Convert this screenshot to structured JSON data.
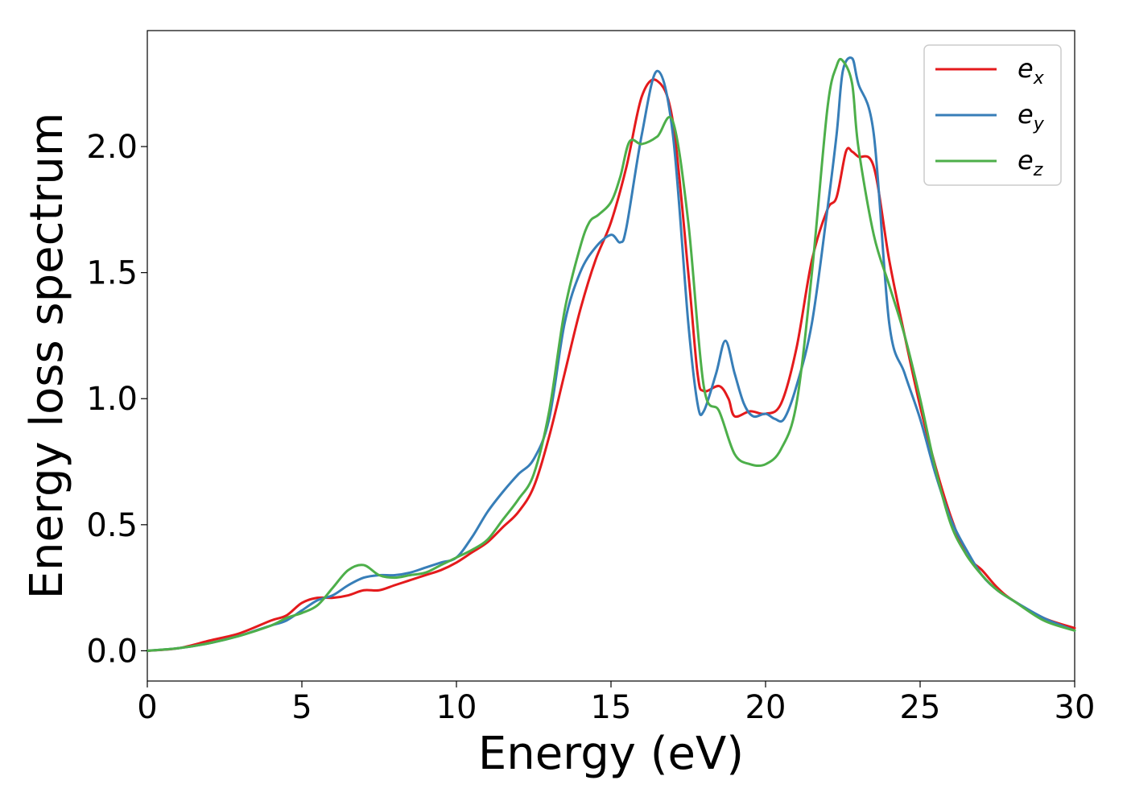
{
  "chart_data": {
    "type": "line",
    "xlabel": "Energy (eV)",
    "ylabel": "Energy loss spectrum",
    "xlim": [
      0,
      30
    ],
    "ylim": [
      -0.12,
      2.46
    ],
    "xticks": [
      0,
      5,
      10,
      15,
      20,
      25,
      30
    ],
    "xtick_labels": [
      "0",
      "5",
      "10",
      "15",
      "20",
      "25",
      "30"
    ],
    "yticks": [
      0.0,
      0.5,
      1.0,
      1.5,
      2.0
    ],
    "ytick_labels": [
      "0.0",
      "0.5",
      "1.0",
      "1.5",
      "2.0"
    ],
    "grid": false,
    "legend_position": "top-right",
    "series": [
      {
        "name": "e",
        "name_sub": "x",
        "color": "#e41a1c",
        "x": [
          0,
          1,
          2,
          3,
          4,
          4.5,
          5,
          5.5,
          6,
          6.5,
          7,
          7.5,
          8,
          8.5,
          9,
          9.5,
          10,
          10.5,
          11,
          11.5,
          12,
          12.5,
          13,
          13.5,
          14,
          14.5,
          15,
          15.5,
          16,
          16.5,
          17,
          17.5,
          17.8,
          18,
          18.5,
          18.8,
          19,
          19.5,
          20,
          20.5,
          21,
          21.5,
          22,
          22.3,
          22.6,
          22.8,
          23,
          23.5,
          24,
          24.5,
          25,
          25.5,
          26,
          26.5,
          27,
          27.5,
          28,
          29,
          30
        ],
        "y": [
          0.0,
          0.01,
          0.04,
          0.07,
          0.12,
          0.14,
          0.19,
          0.21,
          0.21,
          0.22,
          0.24,
          0.24,
          0.26,
          0.28,
          0.3,
          0.32,
          0.35,
          0.39,
          0.43,
          0.49,
          0.55,
          0.65,
          0.85,
          1.1,
          1.35,
          1.55,
          1.7,
          1.92,
          2.2,
          2.26,
          2.1,
          1.5,
          1.1,
          1.03,
          1.05,
          1.0,
          0.93,
          0.95,
          0.94,
          0.98,
          1.2,
          1.55,
          1.75,
          1.8,
          1.98,
          1.98,
          1.96,
          1.92,
          1.55,
          1.25,
          0.97,
          0.73,
          0.53,
          0.38,
          0.32,
          0.25,
          0.2,
          0.13,
          0.09
        ]
      },
      {
        "name": "e",
        "name_sub": "y",
        "color": "#377eb8",
        "x": [
          0,
          1,
          2,
          3,
          3.5,
          4,
          4.5,
          5,
          5.5,
          6,
          6.5,
          7,
          7.5,
          8,
          8.5,
          9,
          9.5,
          10,
          10.5,
          11,
          11.5,
          12,
          12.5,
          13,
          13.5,
          14,
          14.5,
          15,
          15.3,
          15.5,
          16,
          16.5,
          17,
          17.5,
          17.8,
          18,
          18.4,
          18.7,
          19,
          19.3,
          19.6,
          20,
          20.3,
          20.6,
          21,
          21.5,
          22,
          22.3,
          22.5,
          22.8,
          23,
          23.5,
          24,
          24.5,
          25,
          25.5,
          26,
          26.5,
          27,
          27.5,
          28,
          29,
          30
        ],
        "y": [
          0.0,
          0.01,
          0.03,
          0.06,
          0.08,
          0.1,
          0.12,
          0.16,
          0.2,
          0.22,
          0.26,
          0.29,
          0.3,
          0.3,
          0.31,
          0.33,
          0.35,
          0.37,
          0.45,
          0.55,
          0.63,
          0.7,
          0.76,
          0.92,
          1.3,
          1.5,
          1.6,
          1.65,
          1.62,
          1.68,
          2.05,
          2.3,
          2.05,
          1.3,
          0.98,
          0.95,
          1.1,
          1.23,
          1.1,
          0.98,
          0.93,
          0.94,
          0.92,
          0.92,
          1.05,
          1.3,
          1.75,
          2.05,
          2.3,
          2.35,
          2.25,
          2.05,
          1.3,
          1.1,
          0.92,
          0.7,
          0.52,
          0.4,
          0.3,
          0.24,
          0.2,
          0.13,
          0.08
        ]
      },
      {
        "name": "e",
        "name_sub": "z",
        "color": "#4daf4a",
        "x": [
          0,
          1,
          2,
          3,
          4,
          4.5,
          5,
          5.5,
          6,
          6.5,
          7,
          7.5,
          8,
          8.5,
          9,
          9.5,
          10,
          10.5,
          11,
          11.5,
          12,
          12.5,
          13,
          13.5,
          14,
          14.3,
          14.6,
          15,
          15.3,
          15.6,
          16,
          16.5,
          17,
          17.5,
          18,
          18.5,
          19,
          19.5,
          20,
          20.5,
          21,
          21.5,
          22,
          22.3,
          22.5,
          22.8,
          23,
          23.5,
          24,
          24.5,
          25,
          25.5,
          26,
          26.5,
          27,
          27.5,
          28,
          29,
          30
        ],
        "y": [
          0.0,
          0.01,
          0.03,
          0.06,
          0.1,
          0.13,
          0.15,
          0.18,
          0.25,
          0.32,
          0.34,
          0.3,
          0.29,
          0.3,
          0.31,
          0.34,
          0.37,
          0.4,
          0.44,
          0.52,
          0.6,
          0.7,
          0.95,
          1.35,
          1.6,
          1.7,
          1.73,
          1.78,
          1.88,
          2.02,
          2.01,
          2.04,
          2.1,
          1.7,
          1.05,
          0.95,
          0.78,
          0.74,
          0.74,
          0.8,
          0.98,
          1.5,
          2.15,
          2.32,
          2.34,
          2.25,
          2.0,
          1.65,
          1.45,
          1.25,
          1.0,
          0.72,
          0.5,
          0.38,
          0.3,
          0.24,
          0.2,
          0.12,
          0.08
        ]
      }
    ]
  }
}
